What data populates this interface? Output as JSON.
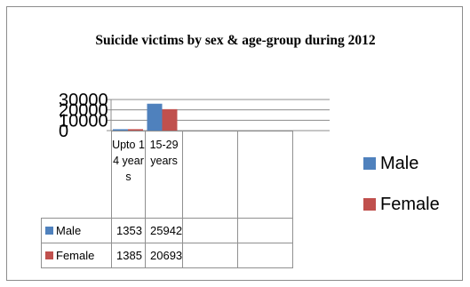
{
  "chart_data": {
    "type": "bar",
    "title": "Suicide victims by sex & age-group during 2012",
    "categories": [
      "Upto 14 years",
      "15-29 years",
      "",
      ""
    ],
    "series": [
      {
        "name": "Male",
        "values": [
          1353,
          25942,
          null,
          null
        ],
        "color": "#4f81bd"
      },
      {
        "name": "Female",
        "values": [
          1385,
          20693,
          null,
          null
        ],
        "color": "#c0504d"
      }
    ],
    "yticks": [
      "0",
      "10000",
      "20000",
      "30000"
    ],
    "ylim": [
      0,
      30000
    ],
    "legend": "right",
    "data_table": true,
    "grid": true
  }
}
